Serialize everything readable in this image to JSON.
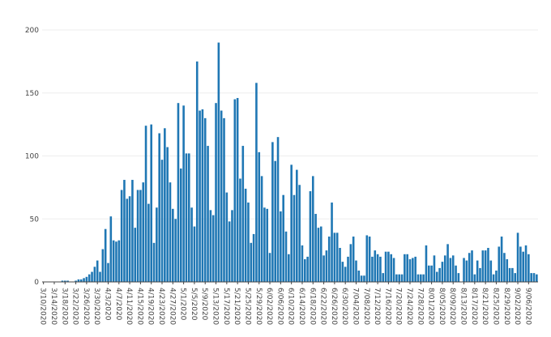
{
  "chart_data": {
    "type": "bar",
    "title": "",
    "xlabel": "",
    "ylabel": "",
    "ylim": [
      0,
      200
    ],
    "yticks": [
      "0",
      "50",
      "100",
      "150",
      "200"
    ],
    "xtick_labels": [
      "3/10/2020",
      "3/14/2020",
      "3/18/2020",
      "3/22/2020",
      "3/26/2020",
      "3/30/2020",
      "4/3/2020",
      "4/7/2020",
      "4/11/2020",
      "4/15/2020",
      "4/19/2020",
      "4/23/2020",
      "4/27/2020",
      "5/1/2020",
      "5/5/2020",
      "5/9/2020",
      "5/13/2020",
      "5/17/2020",
      "5/21/2020",
      "5/25/2020",
      "5/29/2020",
      "6/02/2020",
      "6/06/2020",
      "6/10/2020",
      "6/14/2020",
      "6/18/2020",
      "6/22/2020",
      "6/26/2020",
      "6/30/2020",
      "7/04/2020",
      "7/08/2020",
      "7/12/2020",
      "7/16/2020",
      "7/20/2020",
      "7/24/2020",
      "7/28/2020",
      "8/01/2020",
      "8/05/2020",
      "8/09/2020",
      "8/13/2020",
      "8/17/2020",
      "8/21/2020",
      "8/25/2020",
      "8/29/2020",
      "9/02/2020",
      "9/06/2020"
    ],
    "color": "#1f77b4",
    "grid": true,
    "start_date": "2020-03-10",
    "values": [
      0,
      0,
      0,
      0,
      0,
      0,
      0,
      1,
      1,
      1,
      0,
      0,
      1,
      2,
      2,
      3,
      4,
      6,
      8,
      12,
      17,
      8,
      26,
      42,
      15,
      52,
      33,
      32,
      33,
      73,
      81,
      66,
      68,
      81,
      43,
      73,
      73,
      79,
      124,
      62,
      125,
      31,
      59,
      118,
      97,
      122,
      107,
      79,
      58,
      50,
      142,
      90,
      140,
      102,
      102,
      59,
      44,
      175,
      136,
      137,
      130,
      108,
      57,
      53,
      142,
      190,
      136,
      130,
      71,
      48,
      57,
      145,
      146,
      82,
      108,
      74,
      63,
      31,
      38,
      158,
      103,
      84,
      59,
      58,
      23,
      111,
      96,
      115,
      56,
      69,
      40,
      22,
      93,
      69,
      89,
      77,
      29,
      18,
      20,
      72,
      84,
      54,
      43,
      44,
      21,
      25,
      36,
      63,
      39,
      39,
      27,
      16,
      12,
      20,
      30,
      36,
      17,
      9,
      5,
      5,
      37,
      36,
      20,
      25,
      22,
      20,
      7,
      24,
      24,
      22,
      19,
      6,
      6,
      6,
      22,
      22,
      18,
      19,
      20,
      6,
      6,
      6,
      29,
      13,
      13,
      21,
      8,
      11,
      16,
      21,
      30,
      19,
      21,
      13,
      7,
      0,
      19,
      17,
      23,
      25,
      6,
      17,
      11,
      25,
      25,
      27,
      17,
      6,
      9,
      28,
      36,
      23,
      18,
      11,
      11,
      7,
      39,
      28,
      24,
      29,
      22,
      7,
      7,
      6
    ]
  }
}
